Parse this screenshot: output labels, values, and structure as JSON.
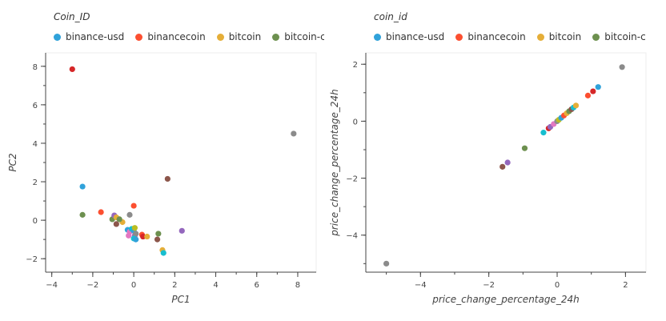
{
  "chart_data": [
    {
      "type": "scatter",
      "legend_title": "Coin_ID",
      "legend_entries": [
        {
          "label": "binance-usd",
          "color": "#30a2da"
        },
        {
          "label": "binancecoin",
          "color": "#fc4f30"
        },
        {
          "label": "bitcoin",
          "color": "#e5ae38"
        },
        {
          "label": "bitcoin-ca",
          "color": "#6d904f"
        }
      ],
      "xlabel": "PC1",
      "ylabel": "PC2",
      "xlim": [
        -4.3,
        8.9
      ],
      "ylim": [
        -2.7,
        8.7
      ],
      "xticks": [
        -4,
        -2,
        0,
        2,
        4,
        6,
        8
      ],
      "yticks": [
        -2,
        0,
        2,
        4,
        6,
        8
      ],
      "points": [
        {
          "x": -3.0,
          "y": 7.85,
          "color": "#d62728"
        },
        {
          "x": 7.8,
          "y": 4.5,
          "color": "#8b8b8b"
        },
        {
          "x": -2.5,
          "y": 1.75,
          "color": "#30a2da"
        },
        {
          "x": 1.65,
          "y": 2.15,
          "color": "#8c564b"
        },
        {
          "x": -2.5,
          "y": 0.28,
          "color": "#6d904f"
        },
        {
          "x": -1.6,
          "y": 0.42,
          "color": "#fc4f30"
        },
        {
          "x": 0.0,
          "y": 0.75,
          "color": "#fc4f30"
        },
        {
          "x": -0.2,
          "y": 0.28,
          "color": "#8b8b8b"
        },
        {
          "x": -1.05,
          "y": 0.05,
          "color": "#6d904f"
        },
        {
          "x": -0.95,
          "y": 0.25,
          "color": "#9467bd"
        },
        {
          "x": -0.85,
          "y": 0.15,
          "color": "#e5ae38"
        },
        {
          "x": -0.85,
          "y": -0.2,
          "color": "#8c564b"
        },
        {
          "x": -0.55,
          "y": -0.1,
          "color": "#e5ae38"
        },
        {
          "x": -0.7,
          "y": 0.05,
          "color": "#6d904f"
        },
        {
          "x": -0.3,
          "y": -0.5,
          "color": "#30a2da"
        },
        {
          "x": -0.2,
          "y": -0.6,
          "color": "#e377c2"
        },
        {
          "x": -0.1,
          "y": -0.45,
          "color": "#17becf"
        },
        {
          "x": 0.0,
          "y": -0.55,
          "color": "#30a2da"
        },
        {
          "x": 0.05,
          "y": -0.8,
          "color": "#9467bd"
        },
        {
          "x": 0.1,
          "y": -0.7,
          "color": "#8b8b8b"
        },
        {
          "x": -0.25,
          "y": -0.8,
          "color": "#e377c2"
        },
        {
          "x": 0.0,
          "y": -0.95,
          "color": "#17becf"
        },
        {
          "x": 0.05,
          "y": -0.4,
          "color": "#bcbd22"
        },
        {
          "x": 0.1,
          "y": -1.0,
          "color": "#30a2da"
        },
        {
          "x": 0.4,
          "y": -0.75,
          "color": "#fc4f30"
        },
        {
          "x": 0.45,
          "y": -0.85,
          "color": "#d62728"
        },
        {
          "x": 0.65,
          "y": -0.85,
          "color": "#e5ae38"
        },
        {
          "x": 1.15,
          "y": -1.0,
          "color": "#8c564b"
        },
        {
          "x": 1.2,
          "y": -0.7,
          "color": "#6d904f"
        },
        {
          "x": 1.4,
          "y": -1.55,
          "color": "#e5ae38"
        },
        {
          "x": 1.45,
          "y": -1.7,
          "color": "#17becf"
        },
        {
          "x": 2.35,
          "y": -0.55,
          "color": "#9467bd"
        }
      ]
    },
    {
      "type": "scatter",
      "legend_title": "coin_id",
      "legend_entries": [
        {
          "label": "binance-usd",
          "color": "#30a2da"
        },
        {
          "label": "binancecoin",
          "color": "#fc4f30"
        },
        {
          "label": "bitcoin",
          "color": "#e5ae38"
        },
        {
          "label": "bitcoin-ca",
          "color": "#6d904f"
        }
      ],
      "xlabel": "price_change_percentage_24h",
      "ylabel": "price_change_percentage_24h",
      "xlim": [
        -5.6,
        2.6
      ],
      "ylim": [
        -5.3,
        2.4
      ],
      "xticks": [
        -4,
        -2,
        0,
        2
      ],
      "yticks": [
        -4,
        -2,
        0,
        2
      ],
      "points": [
        {
          "x": -5.0,
          "y": -5.0,
          "color": "#8b8b8b"
        },
        {
          "x": -1.6,
          "y": -1.6,
          "color": "#8c564b"
        },
        {
          "x": -1.45,
          "y": -1.45,
          "color": "#9467bd"
        },
        {
          "x": -0.95,
          "y": -0.95,
          "color": "#6d904f"
        },
        {
          "x": -0.4,
          "y": -0.4,
          "color": "#17becf"
        },
        {
          "x": -0.25,
          "y": -0.25,
          "color": "#d62728"
        },
        {
          "x": -0.2,
          "y": -0.2,
          "color": "#9467bd"
        },
        {
          "x": -0.1,
          "y": -0.1,
          "color": "#e377c2"
        },
        {
          "x": 0.0,
          "y": 0.0,
          "color": "#8b8b8b"
        },
        {
          "x": 0.05,
          "y": 0.05,
          "color": "#bcbd22"
        },
        {
          "x": 0.12,
          "y": 0.12,
          "color": "#30a2da"
        },
        {
          "x": 0.2,
          "y": 0.2,
          "color": "#fc4f30"
        },
        {
          "x": 0.28,
          "y": 0.28,
          "color": "#e5ae38"
        },
        {
          "x": 0.35,
          "y": 0.35,
          "color": "#6d904f"
        },
        {
          "x": 0.42,
          "y": 0.42,
          "color": "#8c564b"
        },
        {
          "x": 0.48,
          "y": 0.48,
          "color": "#17becf"
        },
        {
          "x": 0.55,
          "y": 0.55,
          "color": "#e5ae38"
        },
        {
          "x": 0.9,
          "y": 0.9,
          "color": "#fc4f30"
        },
        {
          "x": 1.05,
          "y": 1.05,
          "color": "#d62728"
        },
        {
          "x": 1.2,
          "y": 1.2,
          "color": "#30a2da"
        },
        {
          "x": 1.9,
          "y": 1.9,
          "color": "#8b8b8b"
        }
      ]
    }
  ]
}
